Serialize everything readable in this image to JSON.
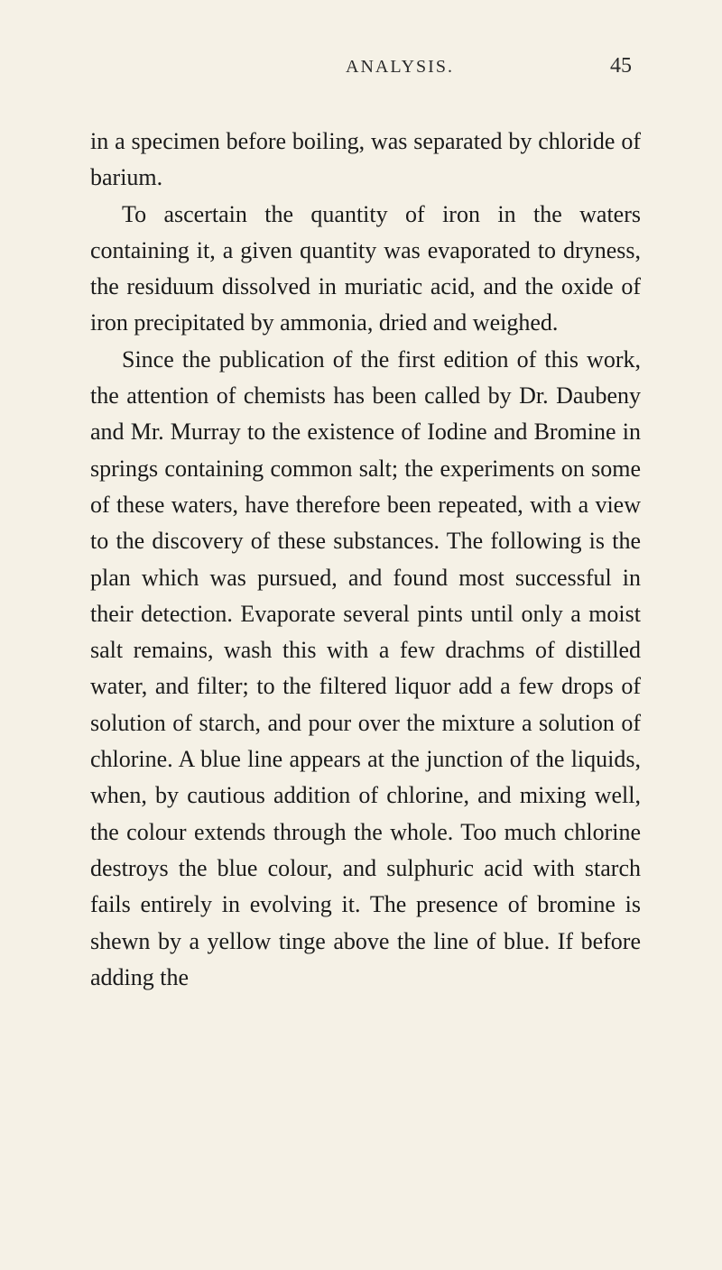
{
  "header": {
    "title": "ANALYSIS.",
    "page_number": "45"
  },
  "body": {
    "paragraph_1": "in a specimen before boiling, was separated by chloride of barium.",
    "paragraph_2": "To ascertain the quantity of iron in the waters containing it, a given quantity was evaporated to dryness, the residuum dissolved in muriatic acid, and the oxide of iron precipitated by ammonia, dried and weighed.",
    "paragraph_3": "Since the publication of the first edition of this work, the attention of chemists has been called by Dr. Daubeny and Mr. Murray to the existence of Iodine and Bromine in springs containing common salt; the experiments on some of these waters, have therefore been repeated, with a view to the discovery of these substances. The following is the plan which was pursued, and found most successful in their detection. Evaporate several pints until only a moist salt remains, wash this with a few drachms of distilled water, and filter; to the filtered liquor add a few drops of solution of starch, and pour over the mixture a solution of chlorine. A blue line appears at the junction of the liquids, when, by cautious addition of chlorine, and mixing well, the colour extends through the whole. Too much chlorine destroys the blue colour, and sulphuric acid with starch fails entirely in evolving it. The presence of bromine is shewn by a yellow tinge above the line of blue. If before adding the"
  },
  "style": {
    "background_color": "#f5f1e6",
    "text_color": "#1a1a1a",
    "body_fontsize": 26,
    "header_fontsize": 20,
    "pagenum_fontsize": 24,
    "line_height": 1.55
  }
}
